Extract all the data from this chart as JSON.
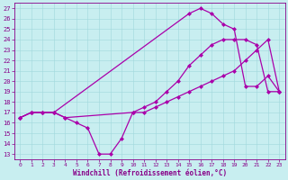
{
  "bg_color": "#c8eef0",
  "line_color": "#aa00aa",
  "grid_color": "#a0d8dc",
  "xlabel": "Windchill (Refroidissement éolien,°C)",
  "tick_color": "#880088",
  "xlim": [
    -0.5,
    23.5
  ],
  "ylim": [
    12.5,
    27.5
  ],
  "yticks": [
    13,
    14,
    15,
    16,
    17,
    18,
    19,
    20,
    21,
    22,
    23,
    24,
    25,
    26,
    27
  ],
  "xticks": [
    0,
    1,
    2,
    3,
    4,
    5,
    6,
    7,
    8,
    9,
    10,
    11,
    12,
    13,
    14,
    15,
    16,
    17,
    18,
    19,
    20,
    21,
    22,
    23
  ],
  "series1_x": [
    0,
    1,
    2,
    3,
    4,
    5,
    6,
    7,
    8,
    9,
    10,
    11,
    12,
    13,
    14,
    15,
    16,
    17,
    18,
    19,
    20,
    21,
    22,
    23
  ],
  "series1_y": [
    16.5,
    17.0,
    17.0,
    17.0,
    16.5,
    16.0,
    15.5,
    13.0,
    13.0,
    14.5,
    17.0,
    17.0,
    17.5,
    18.0,
    18.5,
    19.0,
    19.5,
    20.0,
    20.5,
    21.0,
    22.0,
    23.0,
    24.0,
    19.0
  ],
  "series2_x": [
    0,
    1,
    2,
    3,
    4,
    10,
    11,
    12,
    13,
    14,
    15,
    16,
    17,
    18,
    19,
    20,
    21,
    22,
    23
  ],
  "series2_y": [
    16.5,
    17.0,
    17.0,
    17.0,
    16.5,
    17.0,
    17.5,
    18.0,
    19.0,
    20.0,
    21.5,
    22.5,
    23.5,
    24.0,
    24.0,
    24.0,
    23.5,
    19.0,
    19.0
  ],
  "series3_x": [
    0,
    1,
    2,
    3,
    15,
    16,
    17,
    18,
    19,
    20,
    21,
    22,
    23
  ],
  "series3_y": [
    16.5,
    17.0,
    17.0,
    17.0,
    26.5,
    27.0,
    26.5,
    25.5,
    25.0,
    19.5,
    19.5,
    20.5,
    19.0
  ],
  "marker": "D",
  "markersize": 2,
  "linewidth": 0.9
}
